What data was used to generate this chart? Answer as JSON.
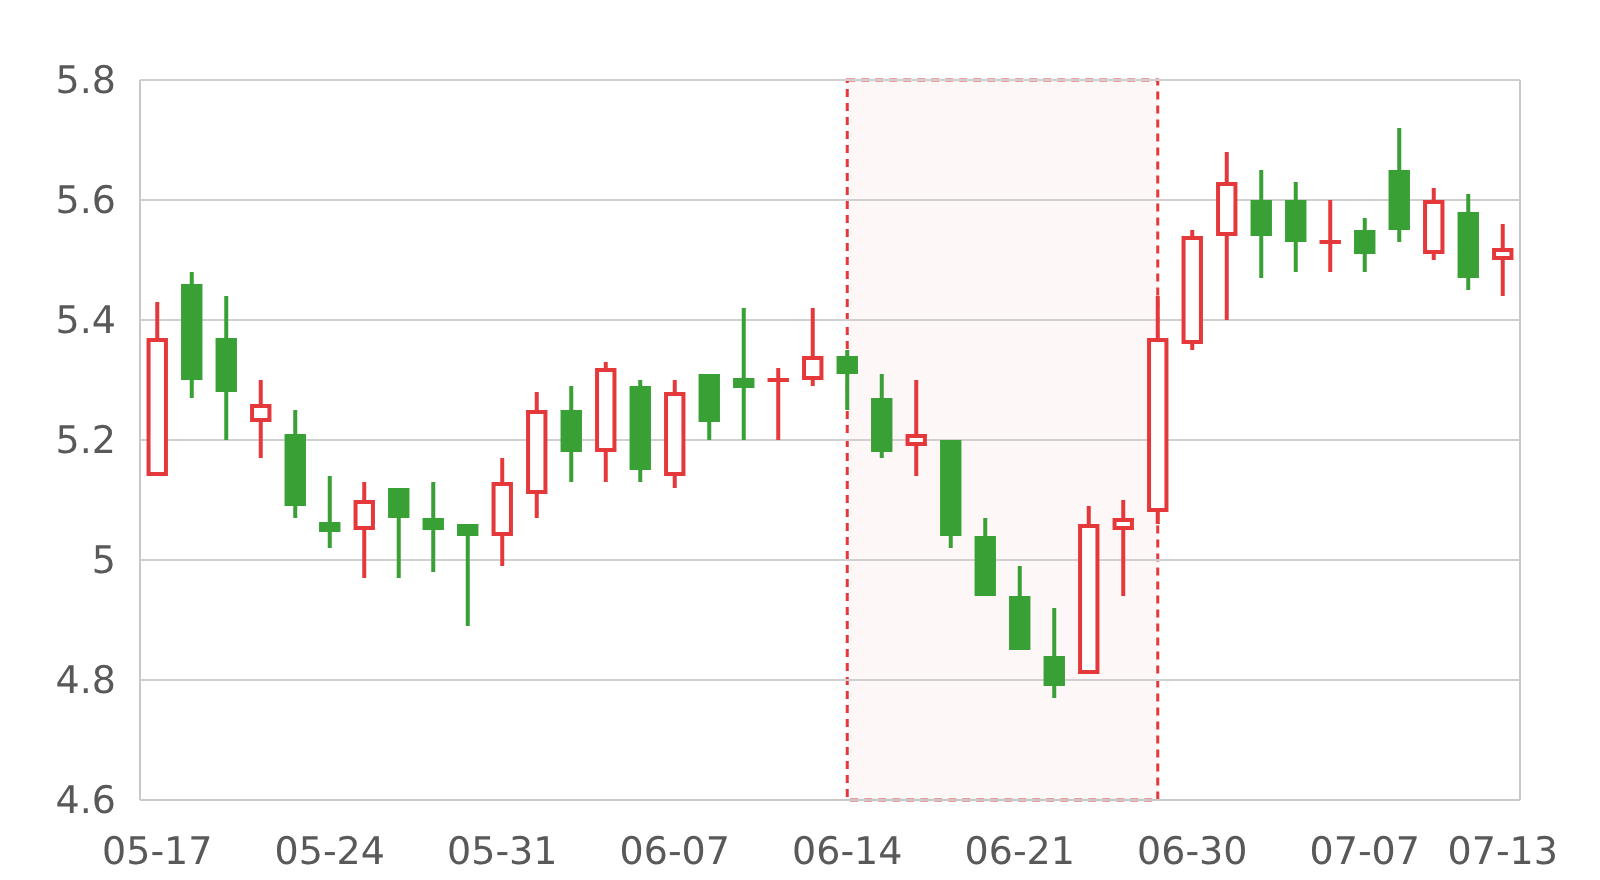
{
  "chart_data": {
    "type": "candlestick",
    "categories": [
      "05-17",
      null,
      null,
      null,
      null,
      "05-24",
      null,
      null,
      null,
      null,
      "05-31",
      null,
      null,
      null,
      null,
      "06-07",
      null,
      null,
      null,
      null,
      "06-14",
      null,
      null,
      null,
      null,
      "06-21",
      null,
      null,
      null,
      null,
      "06-30",
      null,
      null,
      null,
      null,
      "07-07",
      null,
      null,
      null,
      "07-13"
    ],
    "ohlc": [
      [
        5.14,
        5.43,
        5.14,
        5.37
      ],
      [
        5.46,
        5.48,
        5.27,
        5.3
      ],
      [
        5.37,
        5.44,
        5.2,
        5.28
      ],
      [
        5.23,
        5.3,
        5.17,
        5.26
      ],
      [
        5.21,
        5.25,
        5.07,
        5.09
      ],
      [
        5.06,
        5.14,
        5.02,
        5.05
      ],
      [
        5.05,
        5.13,
        4.97,
        5.1
      ],
      [
        5.12,
        5.12,
        4.97,
        5.07
      ],
      [
        5.07,
        5.13,
        4.98,
        5.05
      ],
      [
        5.06,
        5.06,
        4.89,
        5.04
      ],
      [
        5.04,
        5.17,
        4.99,
        5.13
      ],
      [
        5.11,
        5.28,
        5.07,
        5.25
      ],
      [
        5.25,
        5.29,
        5.13,
        5.18
      ],
      [
        5.18,
        5.33,
        5.13,
        5.32
      ],
      [
        5.29,
        5.3,
        5.13,
        5.15
      ],
      [
        5.14,
        5.3,
        5.12,
        5.28
      ],
      [
        5.31,
        5.31,
        5.2,
        5.23
      ],
      [
        5.3,
        5.42,
        5.2,
        5.29
      ],
      [
        5.3,
        5.32,
        5.2,
        5.3
      ],
      [
        5.3,
        5.42,
        5.29,
        5.34
      ],
      [
        5.34,
        5.35,
        5.25,
        5.31
      ],
      [
        5.27,
        5.31,
        5.17,
        5.18
      ],
      [
        5.19,
        5.3,
        5.14,
        5.21
      ],
      [
        5.2,
        5.2,
        5.02,
        5.04
      ],
      [
        5.04,
        5.07,
        4.94,
        4.94
      ],
      [
        4.94,
        4.99,
        4.85,
        4.85
      ],
      [
        4.84,
        4.92,
        4.77,
        4.79
      ],
      [
        4.81,
        5.09,
        4.81,
        5.06
      ],
      [
        5.05,
        5.1,
        4.94,
        5.07
      ],
      [
        5.08,
        5.44,
        5.06,
        5.37
      ],
      [
        5.36,
        5.55,
        5.35,
        5.54
      ],
      [
        5.54,
        5.68,
        5.4,
        5.63
      ],
      [
        5.6,
        5.65,
        5.47,
        5.54
      ],
      [
        5.6,
        5.63,
        5.48,
        5.53
      ],
      [
        5.53,
        5.6,
        5.48,
        5.53
      ],
      [
        5.55,
        5.57,
        5.48,
        5.51
      ],
      [
        5.65,
        5.72,
        5.53,
        5.55
      ],
      [
        5.51,
        5.62,
        5.5,
        5.6
      ],
      [
        5.58,
        5.61,
        5.45,
        5.47
      ],
      [
        5.5,
        5.56,
        5.44,
        5.52
      ]
    ],
    "colors": [
      "#e5383b",
      "#38a035",
      "#38a035",
      "#e5383b",
      "#38a035",
      "#38a035",
      "#e5383b",
      "#38a035",
      "#38a035",
      "#38a035",
      "#e5383b",
      "#e5383b",
      "#38a035",
      "#e5383b",
      "#38a035",
      "#e5383b",
      "#38a035",
      "#38a035",
      "#e5383b",
      "#e5383b",
      "#38a035",
      "#38a035",
      "#e5383b",
      "#38a035",
      "#38a035",
      "#38a035",
      "#38a035",
      "#e5383b",
      "#e5383b",
      "#e5383b",
      "#e5383b",
      "#e5383b",
      "#38a035",
      "#38a035",
      "#e5383b",
      "#38a035",
      "#38a035",
      "#e5383b",
      "#38a035",
      "#e5383b"
    ],
    "ylim": [
      4.6,
      5.8
    ],
    "yticks": [
      4.6,
      4.8,
      5,
      5.2,
      5.4,
      5.6,
      5.8
    ],
    "grid": "y"
  }
}
